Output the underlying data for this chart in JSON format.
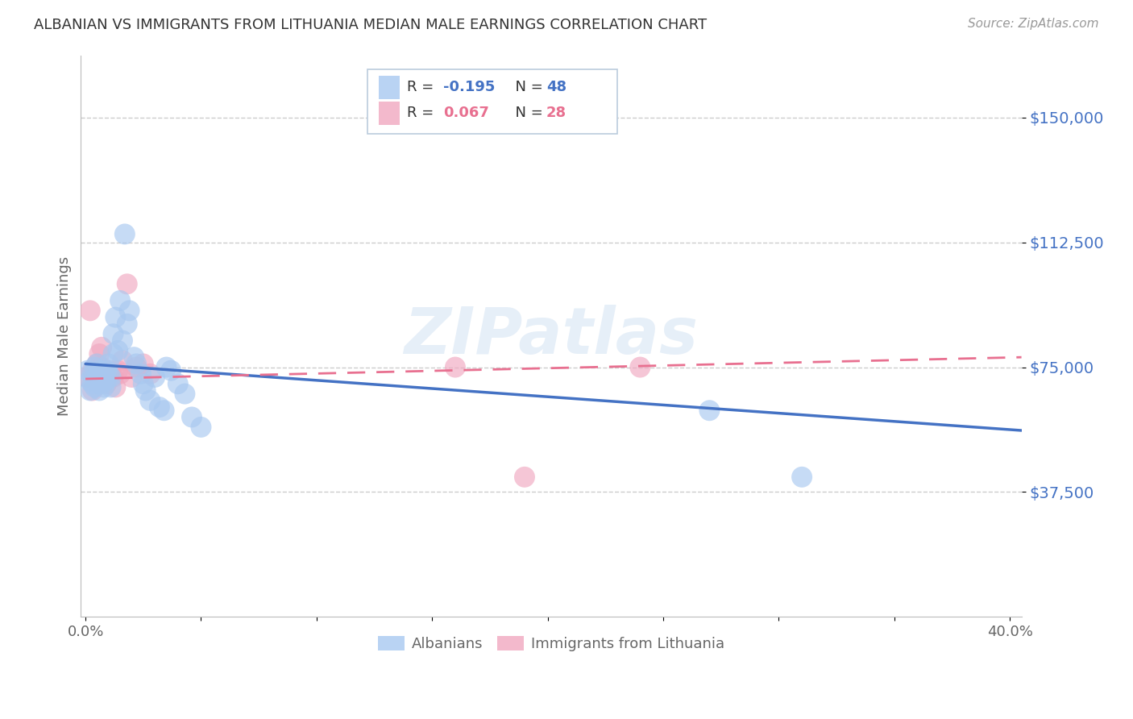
{
  "title": "ALBANIAN VS IMMIGRANTS FROM LITHUANIA MEDIAN MALE EARNINGS CORRELATION CHART",
  "source": "Source: ZipAtlas.com",
  "ylabel": "Median Male Earnings",
  "ytick_labels": [
    "$37,500",
    "$75,000",
    "$112,500",
    "$150,000"
  ],
  "ytick_values": [
    37500,
    75000,
    112500,
    150000
  ],
  "ylim": [
    0,
    168750
  ],
  "xlim": [
    -0.002,
    0.405
  ],
  "watermark": "ZIPatlas",
  "legend_entries": [
    {
      "label": "Albanians",
      "color": "#A8C8F0",
      "R": "-0.195",
      "N": "48"
    },
    {
      "label": "Immigrants from Lithuania",
      "color": "#F0A8C0",
      "R": "0.067",
      "N": "28"
    }
  ],
  "albanians_x": [
    0.001,
    0.002,
    0.002,
    0.003,
    0.003,
    0.004,
    0.004,
    0.005,
    0.005,
    0.006,
    0.006,
    0.006,
    0.007,
    0.007,
    0.008,
    0.008,
    0.009,
    0.009,
    0.01,
    0.01,
    0.011,
    0.011,
    0.012,
    0.012,
    0.013,
    0.014,
    0.015,
    0.016,
    0.017,
    0.018,
    0.019,
    0.021,
    0.022,
    0.024,
    0.025,
    0.026,
    0.028,
    0.03,
    0.032,
    0.034,
    0.035,
    0.037,
    0.04,
    0.043,
    0.046,
    0.05,
    0.27,
    0.31
  ],
  "albanians_y": [
    74000,
    71000,
    68000,
    73000,
    70000,
    75000,
    69000,
    76000,
    72000,
    74000,
    71000,
    68000,
    73000,
    70000,
    72000,
    69000,
    74000,
    71000,
    76000,
    73000,
    72000,
    69000,
    85000,
    79000,
    90000,
    80000,
    95000,
    83000,
    115000,
    88000,
    92000,
    78000,
    76000,
    73000,
    70000,
    68000,
    65000,
    72000,
    63000,
    62000,
    75000,
    74000,
    70000,
    67000,
    60000,
    57000,
    62000,
    42000
  ],
  "lithuania_x": [
    0.001,
    0.002,
    0.003,
    0.003,
    0.004,
    0.005,
    0.005,
    0.006,
    0.006,
    0.007,
    0.007,
    0.008,
    0.009,
    0.01,
    0.011,
    0.012,
    0.013,
    0.014,
    0.015,
    0.016,
    0.018,
    0.02,
    0.022,
    0.025,
    0.028,
    0.16,
    0.19,
    0.24
  ],
  "lithuania_y": [
    72000,
    92000,
    74000,
    68000,
    73000,
    76000,
    74000,
    71000,
    79000,
    75000,
    81000,
    73000,
    70000,
    74000,
    73000,
    72000,
    69000,
    74000,
    73000,
    77000,
    100000,
    72000,
    75000,
    76000,
    73000,
    75000,
    42000,
    75000
  ],
  "blue_line_x0": 0.0,
  "blue_line_x1": 0.405,
  "blue_line_y0": 76000,
  "blue_line_y1": 56000,
  "pink_line_x0": 0.0,
  "pink_line_x1": 0.405,
  "pink_line_y0": 71500,
  "pink_line_y1": 78000,
  "blue_line_color": "#4472C4",
  "pink_line_color": "#E87090",
  "scatter_blue": "#A8C8F0",
  "scatter_pink": "#F0A8C0",
  "grid_color": "#CCCCCC",
  "background_color": "#FFFFFF",
  "title_color": "#333333",
  "axis_label_color": "#666666",
  "ytick_color": "#4472C4",
  "xtick_color": "#666666"
}
